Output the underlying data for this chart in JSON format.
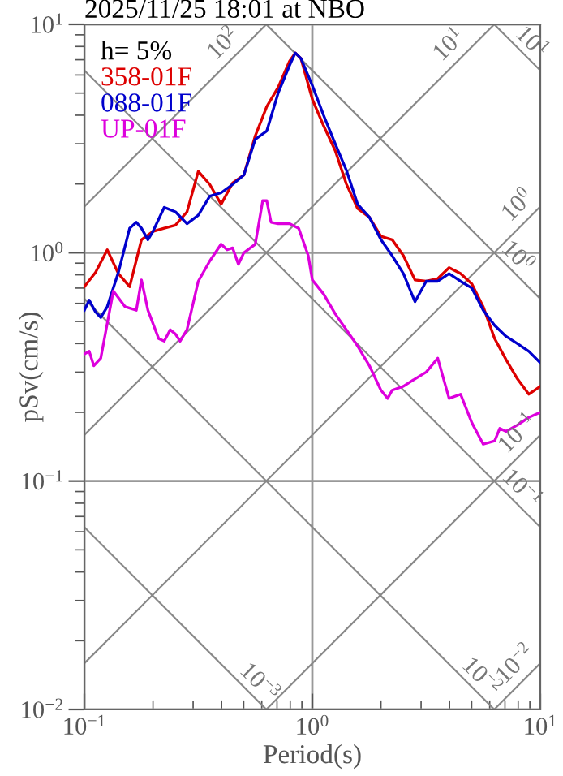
{
  "chart_data": {
    "type": "line",
    "title": "2025/11/25 18:01 at NBO",
    "legend_title": "h= 5%",
    "xlabel": "Period(s)",
    "ylabel": "pSv(cm/s)",
    "log": "xy",
    "grid": true,
    "legend": "top left",
    "xlim": [
      0.1,
      10
    ],
    "ylim": [
      0.01,
      10
    ],
    "xticks": [
      {
        "value": 0.1,
        "label": "10$^{−1}$"
      },
      {
        "value": 1,
        "label": "10$^{0}$"
      },
      {
        "value": 10,
        "label": "10$^{1}$"
      }
    ],
    "yticks": [
      {
        "value": 0.01,
        "label": "10$^{−2}$"
      },
      {
        "value": 0.1,
        "label": "10$^{−1}$"
      },
      {
        "value": 1,
        "label": "10$^{0}$"
      },
      {
        "value": 10,
        "label": "10$^{1}$"
      }
    ],
    "series": [
      {
        "color": "#888888",
        "x": [
          0.1,
          0.6283
        ],
        "values": [
          1.592,
          10
        ]
      },
      {
        "color": "#888888",
        "x": [
          0.1,
          6.283
        ],
        "values": [
          0.1592,
          10
        ]
      },
      {
        "color": "#888888",
        "x": [
          0.1,
          10
        ],
        "values": [
          0.01592,
          1.592
        ]
      },
      {
        "color": "#888888",
        "x": [
          0.6283,
          10
        ],
        "values": [
          0.01,
          0.1592
        ]
      },
      {
        "color": "#888888",
        "x": [
          6.283,
          10
        ],
        "values": [
          0.01,
          0.01592
        ]
      },
      {
        "color": "#888888",
        "x": [
          6.283,
          10
        ],
        "values": [
          10,
          6.283
        ]
      },
      {
        "color": "#888888",
        "x": [
          0.6283,
          10
        ],
        "values": [
          10,
          0.6283
        ]
      },
      {
        "color": "#888888",
        "x": [
          0.1,
          10
        ],
        "values": [
          6.283,
          0.06283
        ]
      },
      {
        "color": "#888888",
        "x": [
          0.1,
          6.283
        ],
        "values": [
          0.6283,
          0.01
        ]
      },
      {
        "color": "#888888",
        "x": [
          0.1,
          0.6283
        ],
        "values": [
          0.06283,
          0.01
        ]
      },
      {
        "name": "358-01F",
        "color": "#dd0000",
        "x": [
          0.1,
          0.112,
          0.126,
          0.141,
          0.158,
          0.178,
          0.2,
          0.224,
          0.251,
          0.282,
          0.316,
          0.355,
          0.398,
          0.447,
          0.501,
          0.562,
          0.631,
          0.708,
          0.794,
          0.842,
          0.891,
          1.0,
          1.12,
          1.26,
          1.41,
          1.58,
          1.78,
          2.0,
          2.24,
          2.51,
          2.82,
          3.16,
          3.55,
          3.98,
          4.47,
          5.01,
          5.62,
          6.31,
          7.08,
          7.94,
          8.91,
          10
        ],
        "values": [
          0.71,
          0.82,
          1.03,
          0.81,
          0.71,
          1.14,
          1.24,
          1.28,
          1.32,
          1.51,
          2.27,
          1.99,
          1.63,
          2.02,
          2.19,
          3.25,
          4.36,
          5.3,
          6.9,
          7.5,
          7.1,
          4.7,
          3.6,
          2.8,
          2.0,
          1.56,
          1.43,
          1.18,
          1.14,
          0.97,
          0.76,
          0.75,
          0.77,
          0.86,
          0.81,
          0.73,
          0.58,
          0.42,
          0.34,
          0.28,
          0.24,
          0.26
        ]
      },
      {
        "name": "088-01F",
        "color": "#0000cc",
        "x": [
          0.1,
          0.105,
          0.112,
          0.118,
          0.126,
          0.141,
          0.158,
          0.169,
          0.178,
          0.19,
          0.2,
          0.224,
          0.251,
          0.282,
          0.316,
          0.355,
          0.398,
          0.447,
          0.501,
          0.562,
          0.631,
          0.708,
          0.794,
          0.842,
          0.891,
          1.0,
          1.12,
          1.26,
          1.41,
          1.58,
          1.78,
          2.0,
          2.24,
          2.51,
          2.82,
          3.16,
          3.55,
          3.98,
          4.47,
          5.01,
          5.62,
          6.31,
          7.08,
          7.94,
          8.91,
          10
        ],
        "values": [
          0.56,
          0.62,
          0.55,
          0.52,
          0.58,
          0.82,
          1.28,
          1.36,
          1.28,
          1.14,
          1.24,
          1.58,
          1.51,
          1.34,
          1.46,
          1.77,
          1.83,
          1.99,
          2.19,
          3.14,
          3.41,
          5.0,
          6.6,
          7.5,
          7.1,
          5.4,
          4.0,
          3.0,
          2.3,
          1.63,
          1.43,
          1.14,
          0.97,
          0.81,
          0.61,
          0.75,
          0.75,
          0.81,
          0.75,
          0.7,
          0.56,
          0.48,
          0.43,
          0.4,
          0.37,
          0.33
        ]
      },
      {
        "name": "UP-01F",
        "color": "#dd00dd",
        "x": [
          0.1,
          0.105,
          0.11,
          0.118,
          0.126,
          0.134,
          0.151,
          0.169,
          0.178,
          0.19,
          0.212,
          0.224,
          0.238,
          0.251,
          0.263,
          0.282,
          0.316,
          0.355,
          0.398,
          0.423,
          0.447,
          0.474,
          0.501,
          0.562,
          0.606,
          0.631,
          0.659,
          0.708,
          0.794,
          0.871,
          0.96,
          1.0,
          1.12,
          1.26,
          1.41,
          1.58,
          1.78,
          2.0,
          2.14,
          2.24,
          2.51,
          2.82,
          3.16,
          3.55,
          3.98,
          4.47,
          5.01,
          5.62,
          6.31,
          6.64,
          7.08,
          7.94,
          8.91,
          10
        ],
        "values": [
          0.36,
          0.37,
          0.32,
          0.345,
          0.49,
          0.68,
          0.58,
          0.56,
          0.76,
          0.56,
          0.42,
          0.41,
          0.46,
          0.44,
          0.41,
          0.46,
          0.75,
          0.92,
          1.09,
          1.03,
          1.05,
          0.89,
          1.0,
          1.09,
          1.69,
          1.69,
          1.36,
          1.34,
          1.34,
          1.28,
          0.97,
          0.76,
          0.66,
          0.54,
          0.46,
          0.39,
          0.32,
          0.25,
          0.23,
          0.25,
          0.26,
          0.28,
          0.3,
          0.345,
          0.23,
          0.24,
          0.18,
          0.145,
          0.15,
          0.17,
          0.165,
          0.176,
          0.19,
          0.2
        ]
      }
    ],
    "annotations": [
      {
        "text": "10$^{2}$",
        "x": 0.46,
        "y": 7.3
      },
      {
        "text": "10$^{1}$",
        "x": 4.5,
        "y": 7.2
      },
      {
        "text": "10$^{1}$",
        "x": 8.3,
        "y": 7.57
      },
      {
        "text": "10$^{0}$",
        "x": 9.0,
        "y": 1.43
      },
      {
        "text": "10$^{0}$",
        "x": 7.2,
        "y": 0.87
      },
      {
        "text": "10$^{−1}$",
        "x": 9.0,
        "y": 0.143
      },
      {
        "text": "10$^{−1}$",
        "x": 7.5,
        "y": 0.084
      },
      {
        "text": "10$^{−2}$",
        "x": 8.8,
        "y": 0.014
      },
      {
        "text": "10$^{−2}$",
        "x": 5.0,
        "y": 0.01257
      },
      {
        "text": "10$^{−3}$",
        "x": 0.53,
        "y": 0.0119
      }
    ]
  }
}
